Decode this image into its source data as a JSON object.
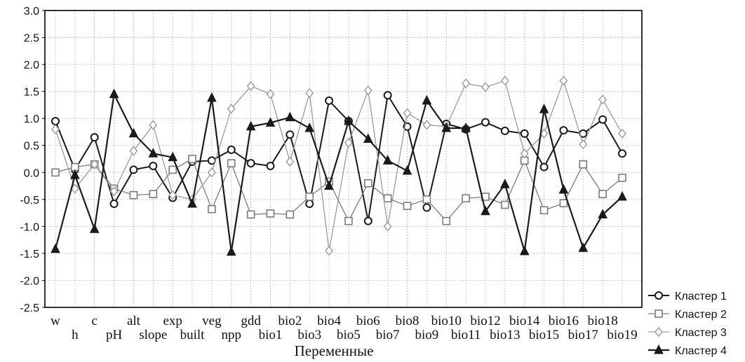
{
  "chart_data": {
    "type": "line",
    "xlabel": "Переменные",
    "ylabel": "",
    "ylim": [
      -2.5,
      3.0
    ],
    "yticks": [
      "3.0",
      "2.5",
      "2.0",
      "1.5",
      "1.0",
      "0.5",
      "0.0",
      "-0.5",
      "-1.0",
      "-1.5",
      "-2.0",
      "-2.5"
    ],
    "grid": true,
    "legend_position": "bottom-right",
    "categories": [
      "w",
      "h",
      "c",
      "pH",
      "alt",
      "slope",
      "exp",
      "built",
      "veg",
      "npp",
      "gdd",
      "bio1",
      "bio2",
      "bio3",
      "bio4",
      "bio5",
      "bio6",
      "bio7",
      "bio8",
      "bio9",
      "bio10",
      "bio11",
      "bio12",
      "bio13",
      "bio14",
      "bio15",
      "bio16",
      "bio17",
      "bio18",
      "bio19"
    ],
    "series": [
      {
        "name": "Кластер 1",
        "marker": "circle",
        "color": "#1a1a1a",
        "values": [
          0.95,
          0.05,
          0.65,
          -0.58,
          0.05,
          0.12,
          -0.47,
          0.2,
          0.22,
          0.42,
          0.17,
          0.12,
          0.7,
          -0.58,
          1.33,
          0.95,
          -0.9,
          1.43,
          0.85,
          -0.65,
          0.9,
          0.8,
          0.93,
          0.77,
          0.72,
          0.1,
          0.78,
          0.72,
          0.98,
          0.35
        ]
      },
      {
        "name": "Кластер 2",
        "marker": "square",
        "color": "#7a7a7a",
        "values": [
          0.0,
          0.1,
          0.15,
          -0.3,
          -0.42,
          -0.4,
          0.05,
          0.25,
          -0.68,
          0.17,
          -0.78,
          -0.76,
          -0.78,
          -0.45,
          -0.17,
          -0.9,
          -0.2,
          -0.48,
          -0.62,
          -0.5,
          -0.9,
          -0.48,
          -0.45,
          -0.6,
          0.22,
          -0.7,
          -0.57,
          0.15,
          -0.4,
          -0.1
        ]
      },
      {
        "name": "Кластер 3",
        "marker": "diamond",
        "color": "#9a9a9a",
        "values": [
          0.8,
          -0.3,
          0.15,
          -0.35,
          0.4,
          0.88,
          -0.42,
          -0.5,
          0.0,
          1.18,
          1.6,
          1.45,
          0.2,
          1.47,
          -1.45,
          0.55,
          1.52,
          -1.0,
          1.1,
          0.88,
          0.85,
          1.65,
          1.58,
          1.7,
          0.35,
          0.72,
          1.7,
          0.52,
          1.35,
          0.72
        ]
      },
      {
        "name": "Кластер 4",
        "marker": "triangle",
        "color": "#1a1a1a",
        "values": [
          -1.42,
          -0.05,
          -1.05,
          1.45,
          0.72,
          0.35,
          0.28,
          -0.58,
          1.38,
          -1.47,
          0.85,
          0.92,
          1.02,
          0.82,
          -0.25,
          0.95,
          0.62,
          0.22,
          0.03,
          1.33,
          0.82,
          0.82,
          -0.72,
          -0.22,
          -1.46,
          1.17,
          -0.32,
          -1.4,
          -0.78,
          -0.45
        ]
      }
    ]
  }
}
